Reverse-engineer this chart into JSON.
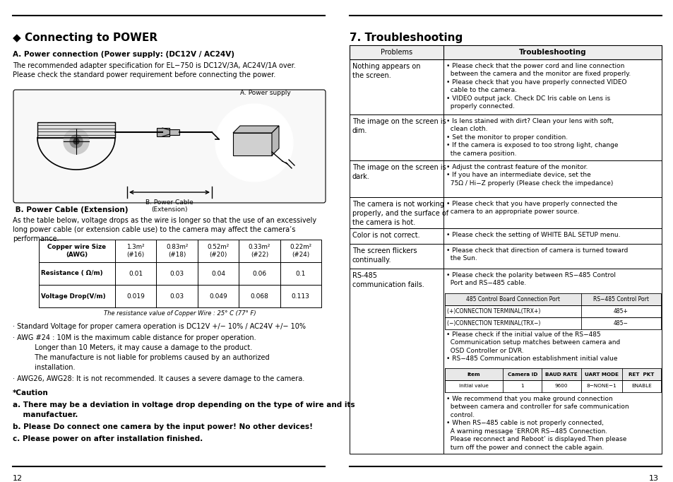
{
  "bg_color": "#ffffff",
  "page_width": 9.54,
  "page_height": 6.82,
  "left_page": {
    "page_num": "12",
    "title": "◆ Connecting to POWER",
    "subtitle_a": "A. Power connection (Power supply: (DC12V / AC24V)",
    "para_a": "The recommended adapter specification for EL−750 is DC12V/3A, AC24V/1A over.\nPlease check the standard power requirement before connecting the power.",
    "diagram_label_ps": "A. Power supply",
    "diagram_label_cable": "B. Power Cable\n(Extension)",
    "subtitle_b": " B. Power Cable (Extension)",
    "para_b": "As the table below, voltage drops as the wire is longer so that the use of an excessively\nlong power cable (or extension cable use) to the camera may affect the camera’s\nperformance.",
    "table_header": [
      "Copper wire Size\n(AWG)",
      "1.3m²\n(#16)",
      "0.83m²\n(#18)",
      "0.52m²\n(#20)",
      "0.33m²\n(#22)",
      "0.22m²\n(#24)"
    ],
    "table_row1_label": "Resistance ( Ω/m)",
    "table_row1_vals": [
      "0.01",
      "0.03",
      "0.04",
      "0.06",
      "0.1"
    ],
    "table_row2_label": "Voltage Drop(V/m)",
    "table_row2_vals": [
      "0.019",
      "0.03",
      "0.049",
      "0.068",
      "0.113"
    ],
    "table_note": "The resistance value of Copper Wire : 25° C (77° F)",
    "bullet1": "· Standard Voltage for proper camera operation is DC12V +/− 10% / AC24V +/− 10%",
    "bullet2a": "· AWG #24 : 10M is the maximum cable distance for proper operation.",
    "bullet2b": "          Longer than 10 Meters, it may cause a damage to the product.",
    "bullet2c": "          The manufacture is not liable for problems caused by an authorized",
    "bullet2d": "          installation.",
    "bullet3": "· AWG26, AWG28: It is not recommended. It causes a severe damage to the camera.",
    "caution_title": "*Caution",
    "caution_a": "a. There may be a deviation in voltage drop depending on the type of wire and its",
    "caution_a2": "    manufactuer.",
    "caution_b": "b. Please Do connect one camera by the input power! No other devices!",
    "caution_c": "c. Please power on after installation finished."
  },
  "right_page": {
    "page_num": "13",
    "title": "7. Troubleshooting",
    "col_header_left": "Problems",
    "col_header_right": "Troubleshooting",
    "rows": [
      {
        "problem": "Nothing appears on\nthe screen.",
        "solution": "• Please check that the power cord and line connection\n  between the camera and the monitor are fixed properly.\n• Please check that you have properly connected VIDEO\n  cable to the camera.\n• VIDEO output jack. Check DC Iris cable on Lens is\n  properly connected."
      },
      {
        "problem": "The image on the screen is\ndim.",
        "solution": "• Is lens stained with dirt? Clean your lens with soft,\n  clean cloth.\n• Set the monitor to proper condition.\n• If the camera is exposed to too strong light, change\n  the camera position."
      },
      {
        "problem": "The image on the screen is\ndark.",
        "solution": "• Adjust the contrast feature of the monitor.\n• If you have an intermediate device, set the\n  75Ω / Hi−Z properly (Please check the impedance)"
      },
      {
        "problem": "The camera is not working\nproperly, and the surface of\nthe camera is hot.",
        "solution": "• Please check that you have properly connected the\n  camera to an appropriate power source."
      },
      {
        "problem": "Color is not correct.",
        "solution": "• Please check the setting of WHITE BAL SETUP menu."
      },
      {
        "problem": "The screen flickers\ncontinually.",
        "solution": "• Please check that direction of camera is turned toward\n  the Sun."
      },
      {
        "problem": "RS-485\ncommunication fails.",
        "pre485": "• Please check the polarity between RS−485 Control\n  Port and RS−485 cable.",
        "tbl485_h": [
          "485 Control Board Connection Port",
          "RS−485 Control Port"
        ],
        "tbl485_r1": [
          "(+)CONNECTION TERMINAL(TRX+)",
          "485+"
        ],
        "tbl485_r2": [
          "(−)CONNECTION TERMINAL(TRX−)",
          "485−"
        ],
        "mid485": "• Please check if the initial value of the RS−485\n  Communication setup matches between camera and\n  OSD Controller or DVR.\n• RS−485 Communication establishment initial value",
        "tbl_init_h": [
          "Item",
          "Camera ID",
          "BAUD RATE",
          "UART MODE",
          "RET  PKT"
        ],
        "tbl_init_v": [
          "Initial value",
          "1",
          "9600",
          "8−NONE−1",
          "ENABLE"
        ],
        "post485": "• We recommend that you make ground connection\n  between camera and controller for safe communication\n  control.\n• When RS−485 cable is not properly connected,\n  A warning message ‘ERROR RS−485 Connection.\n  Please reconnect and Reboot’ is displayed.Then please\n  turn off the power and connect the cable again.",
        "solution": ""
      }
    ]
  }
}
